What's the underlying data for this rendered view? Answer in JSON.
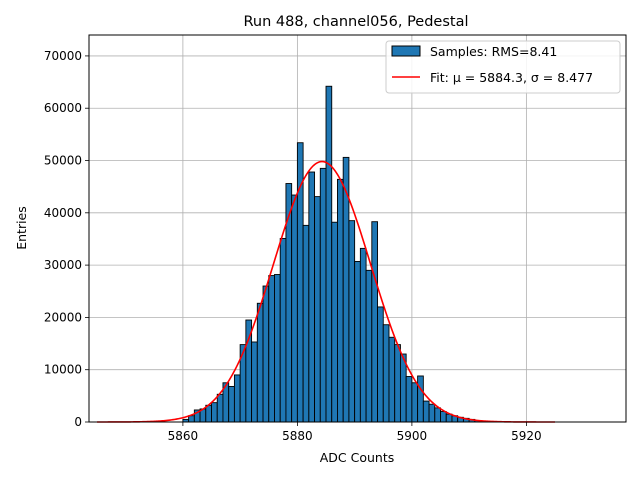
{
  "chart_data": {
    "type": "bar",
    "title": "Run 488, channel056, Pedestal",
    "xlabel": "ADC Counts",
    "ylabel": "Entries",
    "xlim": [
      5843.6,
      5937.4
    ],
    "ylim": [
      0,
      74000
    ],
    "grid": true,
    "legend_position": "top-right",
    "x_ticks": [
      5860,
      5880,
      5900,
      5920
    ],
    "y_ticks": [
      0,
      10000,
      20000,
      30000,
      40000,
      50000,
      60000,
      70000
    ],
    "histogram": {
      "name": "Samples: RMS=8.41",
      "color": "#1f77b4",
      "edge_color": "#000000",
      "bin_width": 1,
      "bin_starts": [
        5860,
        5861,
        5862,
        5863,
        5864,
        5865,
        5866,
        5867,
        5868,
        5869,
        5870,
        5871,
        5872,
        5873,
        5874,
        5875,
        5876,
        5877,
        5878,
        5879,
        5880,
        5881,
        5882,
        5883,
        5884,
        5885,
        5886,
        5887,
        5888,
        5889,
        5890,
        5891,
        5892,
        5893,
        5894,
        5895,
        5896,
        5897,
        5898,
        5899,
        5900,
        5901,
        5902,
        5903,
        5904,
        5905,
        5906,
        5907,
        5908,
        5909,
        5910,
        5911,
        5912
      ],
      "values": [
        500,
        1200,
        2300,
        2500,
        3200,
        3700,
        5300,
        7500,
        6800,
        9000,
        14800,
        19500,
        15300,
        22700,
        26000,
        28000,
        28200,
        35100,
        45600,
        43400,
        53400,
        37600,
        47800,
        43100,
        48500,
        64200,
        38200,
        46400,
        50600,
        38500,
        30700,
        33200,
        29000,
        38300,
        22000,
        18600,
        16200,
        14800,
        13000,
        8700,
        7500,
        8800,
        4000,
        3400,
        2700,
        2000,
        1500,
        1200,
        900,
        700,
        500,
        300,
        200
      ]
    },
    "fit": {
      "name": "Fit: μ = 5884.3, σ = 8.477",
      "color": "#ff0000",
      "mu": 5884.3,
      "sigma": 8.477,
      "amplitude": 49800,
      "x_range": [
        5845,
        5925
      ]
    }
  }
}
